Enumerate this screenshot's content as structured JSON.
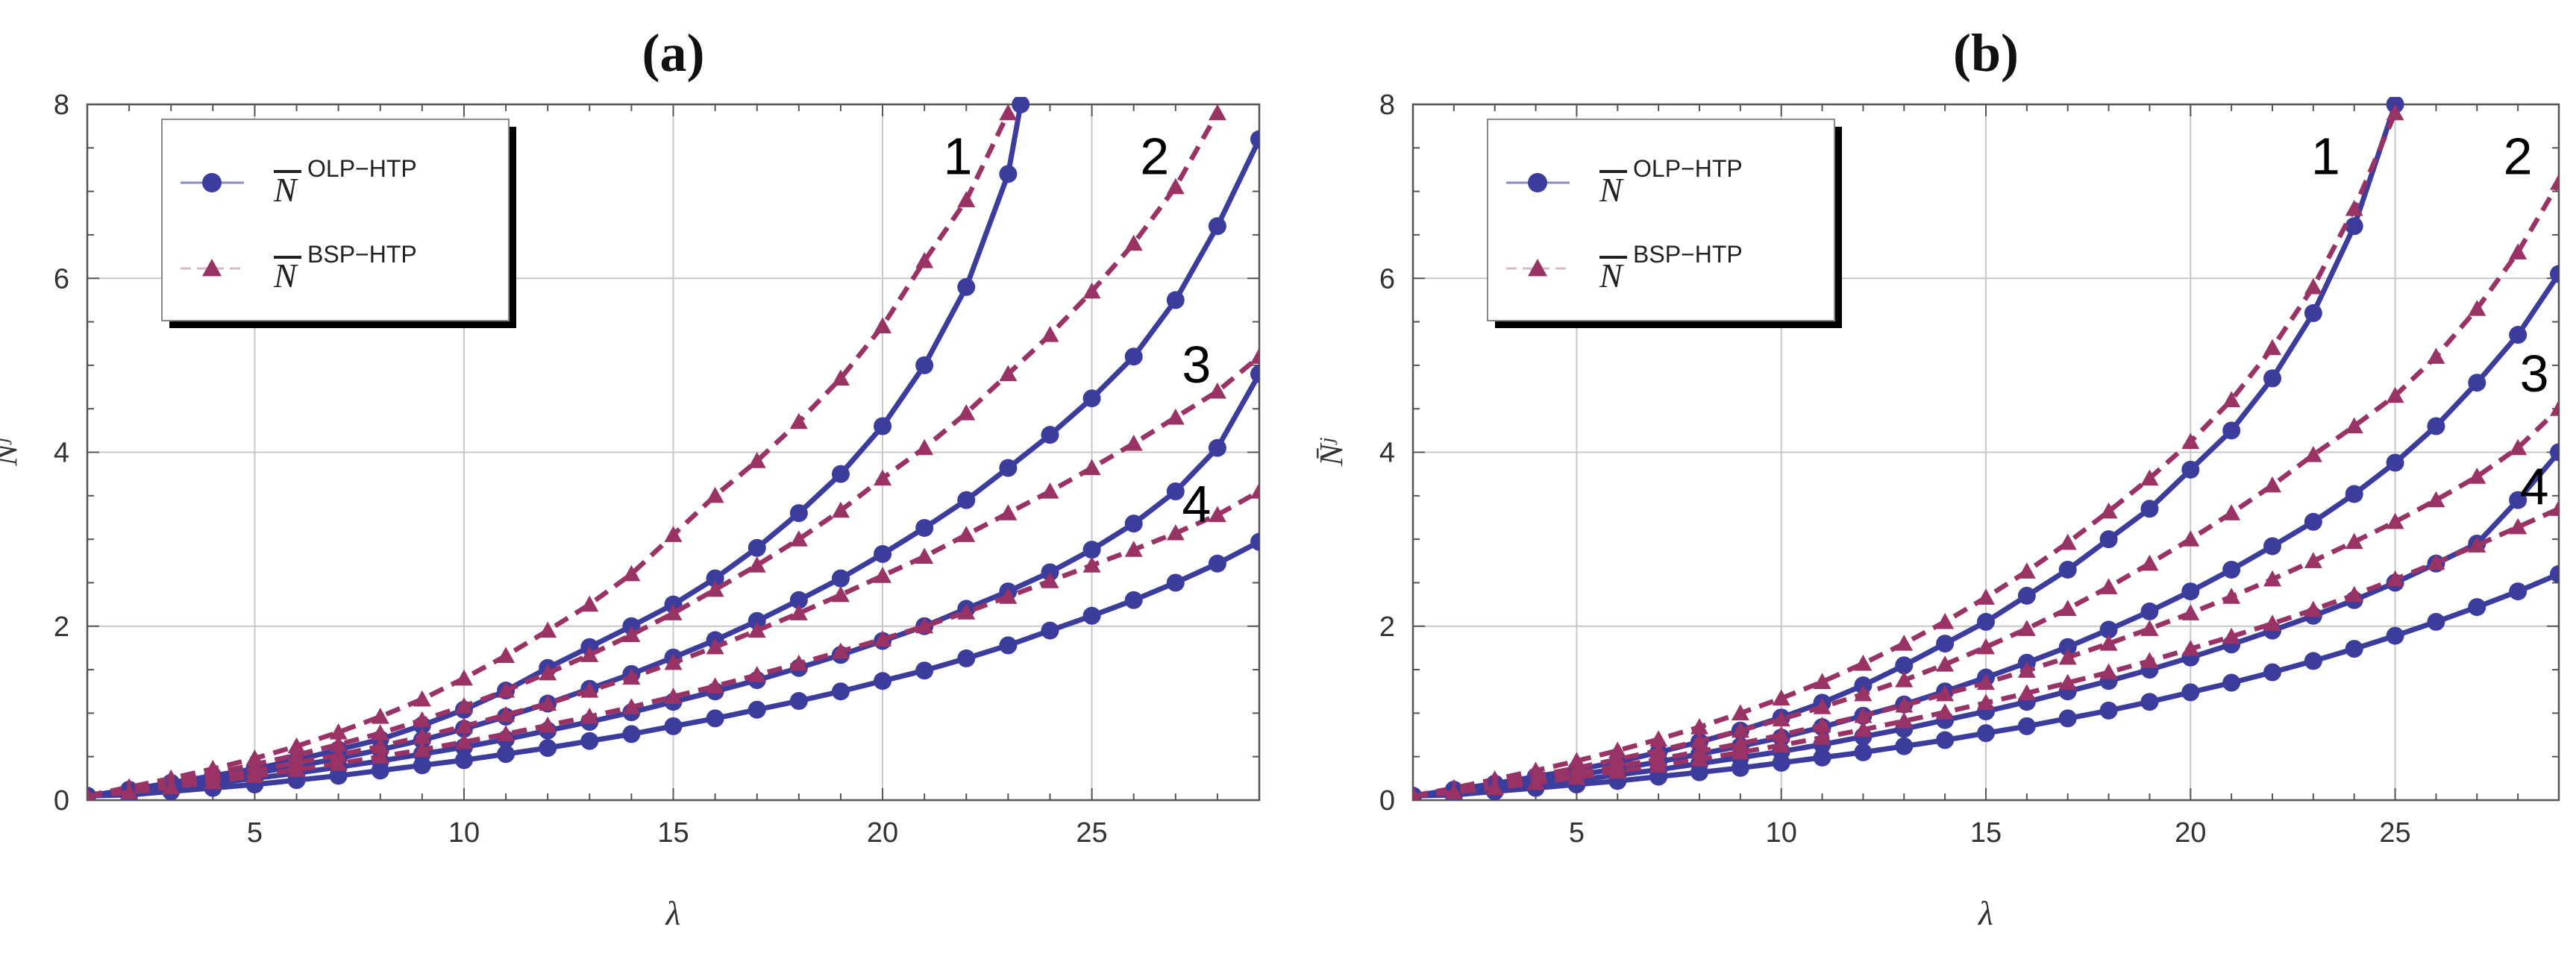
{
  "figure": {
    "colors": {
      "olp": "#3c3c9c",
      "bsp": "#993366",
      "grid": "#c8c8c8",
      "frame": "#555555"
    }
  },
  "chart_data": [
    {
      "type": "line",
      "title": "(a)",
      "xlabel": "λ",
      "ylabel": "N̄ʲ",
      "xlim": [
        1,
        29
      ],
      "ylim": [
        0,
        8
      ],
      "x_ticks": [
        5,
        10,
        15,
        20,
        25
      ],
      "y_ticks": [
        0,
        2,
        4,
        6,
        8
      ],
      "grid": true,
      "legend": {
        "placement": "top-left",
        "entries": [
          {
            "symbol": "N",
            "superscript": "OLP−HTP",
            "series": "olp"
          },
          {
            "symbol": "N",
            "superscript": "BSP−HTP",
            "series": "bsp"
          }
        ]
      },
      "curve_labels": [
        {
          "text": "1",
          "x": 21.8,
          "y": 7.2
        },
        {
          "text": "2",
          "x": 26.5,
          "y": 7.2
        },
        {
          "text": "3",
          "x": 27.5,
          "y": 4.8
        },
        {
          "text": "4",
          "x": 27.5,
          "y": 3.2
        }
      ],
      "series": [
        {
          "name": "N̄ OLP-HTP curve 1",
          "kind": "olp",
          "curve": "1",
          "x": [
            1,
            2,
            3,
            4,
            5,
            6,
            7,
            8,
            9,
            10,
            11,
            12,
            13,
            14,
            15,
            16,
            17,
            18,
            19,
            20,
            21,
            22,
            23,
            23.3
          ],
          "values": [
            0.05,
            0.12,
            0.2,
            0.28,
            0.36,
            0.46,
            0.58,
            0.7,
            0.86,
            1.04,
            1.26,
            1.52,
            1.76,
            2.0,
            2.25,
            2.55,
            2.9,
            3.3,
            3.75,
            4.3,
            5.0,
            5.9,
            7.2,
            8.0
          ]
        },
        {
          "name": "N̄ BSP-HTP curve 1",
          "kind": "bsp",
          "curve": "1",
          "x": [
            1,
            2,
            3,
            4,
            5,
            6,
            7,
            8,
            9,
            10,
            11,
            12,
            13,
            14,
            15,
            16,
            17,
            18,
            19,
            20,
            21,
            22,
            23
          ],
          "values": [
            0.05,
            0.15,
            0.25,
            0.36,
            0.48,
            0.62,
            0.78,
            0.96,
            1.16,
            1.4,
            1.66,
            1.95,
            2.25,
            2.6,
            3.05,
            3.5,
            3.9,
            4.35,
            4.85,
            5.45,
            6.2,
            6.9,
            7.9
          ]
        },
        {
          "name": "N̄ OLP-HTP curve 2",
          "kind": "olp",
          "curve": "2",
          "x": [
            1,
            2,
            3,
            4,
            5,
            6,
            7,
            8,
            9,
            10,
            11,
            12,
            13,
            14,
            15,
            16,
            17,
            18,
            19,
            20,
            21,
            22,
            23,
            24,
            25,
            26,
            27,
            28,
            29
          ],
          "values": [
            0.05,
            0.1,
            0.17,
            0.24,
            0.31,
            0.39,
            0.48,
            0.58,
            0.69,
            0.82,
            0.96,
            1.11,
            1.28,
            1.45,
            1.64,
            1.84,
            2.06,
            2.3,
            2.55,
            2.83,
            3.13,
            3.45,
            3.82,
            4.2,
            4.62,
            5.1,
            5.75,
            6.6,
            7.6
          ]
        },
        {
          "name": "N̄ BSP-HTP curve 2",
          "kind": "bsp",
          "curve": "2",
          "x": [
            1,
            2,
            3,
            4,
            5,
            6,
            7,
            8,
            9,
            10,
            11,
            12,
            13,
            14,
            15,
            16,
            17,
            18,
            19,
            20,
            21,
            22,
            23,
            24,
            25,
            26,
            27,
            28
          ],
          "values": [
            0.05,
            0.13,
            0.22,
            0.31,
            0.41,
            0.52,
            0.64,
            0.77,
            0.92,
            1.08,
            1.26,
            1.46,
            1.67,
            1.9,
            2.15,
            2.42,
            2.7,
            3.0,
            3.33,
            3.7,
            4.05,
            4.45,
            4.9,
            5.35,
            5.85,
            6.4,
            7.05,
            7.9
          ]
        },
        {
          "name": "N̄ OLP-HTP curve 3",
          "kind": "olp",
          "curve": "3",
          "x": [
            1,
            2,
            3,
            4,
            5,
            6,
            7,
            8,
            9,
            10,
            11,
            12,
            13,
            14,
            15,
            16,
            17,
            18,
            19,
            20,
            21,
            22,
            23,
            24,
            25,
            26,
            27,
            28,
            29
          ],
          "values": [
            0.05,
            0.08,
            0.13,
            0.19,
            0.25,
            0.31,
            0.38,
            0.45,
            0.53,
            0.61,
            0.7,
            0.8,
            0.9,
            1.01,
            1.13,
            1.25,
            1.38,
            1.52,
            1.67,
            1.83,
            2.0,
            2.2,
            2.4,
            2.62,
            2.88,
            3.18,
            3.55,
            4.05,
            4.9
          ]
        },
        {
          "name": "N̄ BSP-HTP curve 3",
          "kind": "bsp",
          "curve": "3",
          "x": [
            1,
            2,
            3,
            4,
            5,
            6,
            7,
            8,
            9,
            10,
            11,
            12,
            13,
            14,
            15,
            16,
            17,
            18,
            19,
            20,
            21,
            22,
            23,
            24,
            25,
            26,
            27,
            28,
            29
          ],
          "values": [
            0.05,
            0.11,
            0.18,
            0.26,
            0.34,
            0.43,
            0.52,
            0.62,
            0.73,
            0.85,
            0.98,
            1.11,
            1.26,
            1.41,
            1.58,
            1.76,
            1.95,
            2.15,
            2.36,
            2.58,
            2.8,
            3.05,
            3.3,
            3.55,
            3.82,
            4.1,
            4.4,
            4.7,
            5.1
          ]
        },
        {
          "name": "N̄ OLP-HTP curve 4",
          "kind": "olp",
          "curve": "4",
          "x": [
            1,
            2,
            3,
            4,
            5,
            6,
            7,
            8,
            9,
            10,
            11,
            12,
            13,
            14,
            15,
            16,
            17,
            18,
            19,
            20,
            21,
            22,
            23,
            24,
            25,
            26,
            27,
            28,
            29
          ],
          "values": [
            0.05,
            0.06,
            0.1,
            0.14,
            0.18,
            0.23,
            0.28,
            0.34,
            0.4,
            0.46,
            0.53,
            0.6,
            0.68,
            0.76,
            0.85,
            0.94,
            1.04,
            1.14,
            1.25,
            1.37,
            1.49,
            1.63,
            1.78,
            1.95,
            2.12,
            2.3,
            2.5,
            2.72,
            2.97
          ]
        },
        {
          "name": "N̄ BSP-HTP curve 4",
          "kind": "bsp",
          "curve": "4",
          "x": [
            1,
            2,
            3,
            4,
            5,
            6,
            7,
            8,
            9,
            10,
            11,
            12,
            13,
            14,
            15,
            16,
            17,
            18,
            19,
            20,
            21,
            22,
            23,
            24,
            25,
            26,
            27,
            28,
            29
          ],
          "values": [
            0.05,
            0.09,
            0.15,
            0.21,
            0.28,
            0.35,
            0.42,
            0.5,
            0.58,
            0.67,
            0.76,
            0.86,
            0.96,
            1.07,
            1.19,
            1.31,
            1.44,
            1.57,
            1.71,
            1.85,
            2.0,
            2.16,
            2.34,
            2.52,
            2.7,
            2.88,
            3.07,
            3.28,
            3.55
          ]
        }
      ]
    },
    {
      "type": "line",
      "title": "(b)",
      "xlabel": "λ",
      "ylabel": "N̄ʲ",
      "xlim": [
        1,
        29
      ],
      "ylim": [
        0,
        8
      ],
      "x_ticks": [
        5,
        10,
        15,
        20,
        25
      ],
      "y_ticks": [
        0,
        2,
        4,
        6,
        8
      ],
      "grid": true,
      "legend": {
        "placement": "top-left",
        "entries": [
          {
            "symbol": "N",
            "superscript": "OLP−HTP",
            "series": "olp"
          },
          {
            "symbol": "N",
            "superscript": "BSP−HTP",
            "series": "bsp"
          }
        ]
      },
      "curve_labels": [
        {
          "text": "1",
          "x": 23.3,
          "y": 7.2
        },
        {
          "text": "2",
          "x": 28.0,
          "y": 7.2
        },
        {
          "text": "3",
          "x": 28.4,
          "y": 4.7
        },
        {
          "text": "4",
          "x": 28.4,
          "y": 3.4
        }
      ],
      "series": [
        {
          "name": "N̄ OLP-HTP curve 1",
          "kind": "olp",
          "curve": "1",
          "x": [
            1,
            2,
            3,
            4,
            5,
            6,
            7,
            8,
            9,
            10,
            11,
            12,
            13,
            14,
            15,
            16,
            17,
            18,
            19,
            20,
            21,
            22,
            23,
            24,
            25
          ],
          "values": [
            0.05,
            0.12,
            0.19,
            0.27,
            0.35,
            0.44,
            0.55,
            0.67,
            0.8,
            0.95,
            1.12,
            1.32,
            1.55,
            1.8,
            2.05,
            2.35,
            2.65,
            3.0,
            3.35,
            3.8,
            4.25,
            4.85,
            5.6,
            6.6,
            8.0
          ]
        },
        {
          "name": "N̄ BSP-HTP curve 1",
          "kind": "bsp",
          "curve": "1",
          "x": [
            1,
            2,
            3,
            4,
            5,
            6,
            7,
            8,
            9,
            10,
            11,
            12,
            13,
            14,
            15,
            16,
            17,
            18,
            19,
            20,
            21,
            22,
            23,
            24,
            25
          ],
          "values": [
            0.05,
            0.14,
            0.24,
            0.34,
            0.45,
            0.57,
            0.7,
            0.84,
            1.0,
            1.17,
            1.36,
            1.57,
            1.8,
            2.05,
            2.33,
            2.63,
            2.96,
            3.32,
            3.7,
            4.12,
            4.6,
            5.2,
            5.9,
            6.8,
            7.9
          ]
        },
        {
          "name": "N̄ OLP-HTP curve 2",
          "kind": "olp",
          "curve": "2",
          "x": [
            1,
            2,
            3,
            4,
            5,
            6,
            7,
            8,
            9,
            10,
            11,
            12,
            13,
            14,
            15,
            16,
            17,
            18,
            19,
            20,
            21,
            22,
            23,
            24,
            25,
            26,
            27,
            28,
            29
          ],
          "values": [
            0.05,
            0.1,
            0.16,
            0.22,
            0.29,
            0.36,
            0.44,
            0.53,
            0.62,
            0.72,
            0.84,
            0.97,
            1.1,
            1.25,
            1.41,
            1.58,
            1.76,
            1.96,
            2.17,
            2.4,
            2.65,
            2.92,
            3.2,
            3.52,
            3.88,
            4.3,
            4.8,
            5.35,
            6.05
          ]
        },
        {
          "name": "N̄ BSP-HTP curve 2",
          "kind": "bsp",
          "curve": "2",
          "x": [
            1,
            2,
            3,
            4,
            5,
            6,
            7,
            8,
            9,
            10,
            11,
            12,
            13,
            14,
            15,
            16,
            17,
            18,
            19,
            20,
            21,
            22,
            23,
            24,
            25,
            26,
            27,
            28,
            29
          ],
          "values": [
            0.05,
            0.12,
            0.2,
            0.28,
            0.37,
            0.47,
            0.57,
            0.68,
            0.8,
            0.93,
            1.07,
            1.22,
            1.38,
            1.56,
            1.76,
            1.97,
            2.2,
            2.45,
            2.72,
            3.0,
            3.3,
            3.62,
            3.97,
            4.3,
            4.65,
            5.1,
            5.65,
            6.3,
            7.1
          ]
        },
        {
          "name": "N̄ OLP-HTP curve 3",
          "kind": "olp",
          "curve": "3",
          "x": [
            1,
            2,
            3,
            4,
            5,
            6,
            7,
            8,
            9,
            10,
            11,
            12,
            13,
            14,
            15,
            16,
            17,
            18,
            19,
            20,
            21,
            22,
            23,
            24,
            25,
            26,
            27,
            28,
            29
          ],
          "values": [
            0.05,
            0.08,
            0.13,
            0.18,
            0.23,
            0.29,
            0.35,
            0.42,
            0.49,
            0.56,
            0.64,
            0.73,
            0.82,
            0.92,
            1.02,
            1.13,
            1.25,
            1.37,
            1.5,
            1.64,
            1.79,
            1.95,
            2.12,
            2.3,
            2.5,
            2.72,
            2.95,
            3.45,
            4.0
          ]
        },
        {
          "name": "N̄ BSP-HTP curve 3",
          "kind": "bsp",
          "curve": "3",
          "x": [
            1,
            2,
            3,
            4,
            5,
            6,
            7,
            8,
            9,
            10,
            11,
            12,
            13,
            14,
            15,
            16,
            17,
            18,
            19,
            20,
            21,
            22,
            23,
            24,
            25,
            26,
            27,
            28,
            29
          ],
          "values": [
            0.05,
            0.1,
            0.17,
            0.24,
            0.31,
            0.39,
            0.47,
            0.56,
            0.65,
            0.75,
            0.86,
            0.97,
            1.09,
            1.22,
            1.35,
            1.49,
            1.64,
            1.8,
            1.97,
            2.15,
            2.34,
            2.54,
            2.75,
            2.97,
            3.2,
            3.45,
            3.72,
            4.05,
            4.5
          ]
        },
        {
          "name": "N̄ OLP-HTP curve 4",
          "kind": "olp",
          "curve": "4",
          "x": [
            1,
            2,
            3,
            4,
            5,
            6,
            7,
            8,
            9,
            10,
            11,
            12,
            13,
            14,
            15,
            16,
            17,
            18,
            19,
            20,
            21,
            22,
            23,
            24,
            25,
            26,
            27,
            28,
            29
          ],
          "values": [
            0.05,
            0.06,
            0.1,
            0.14,
            0.18,
            0.22,
            0.27,
            0.32,
            0.37,
            0.43,
            0.49,
            0.55,
            0.62,
            0.69,
            0.77,
            0.85,
            0.94,
            1.03,
            1.13,
            1.24,
            1.35,
            1.47,
            1.6,
            1.74,
            1.89,
            2.05,
            2.22,
            2.4,
            2.6
          ]
        },
        {
          "name": "N̄ BSP-HTP curve 4",
          "kind": "bsp",
          "curve": "4",
          "x": [
            1,
            2,
            3,
            4,
            5,
            6,
            7,
            8,
            9,
            10,
            11,
            12,
            13,
            14,
            15,
            16,
            17,
            18,
            19,
            20,
            21,
            22,
            23,
            24,
            25,
            26,
            27,
            28,
            29
          ],
          "values": [
            0.05,
            0.09,
            0.14,
            0.2,
            0.26,
            0.33,
            0.4,
            0.47,
            0.55,
            0.63,
            0.72,
            0.81,
            0.91,
            1.01,
            1.12,
            1.23,
            1.35,
            1.47,
            1.6,
            1.74,
            1.88,
            2.03,
            2.19,
            2.36,
            2.54,
            2.73,
            2.93,
            3.14,
            3.35
          ]
        }
      ]
    }
  ]
}
